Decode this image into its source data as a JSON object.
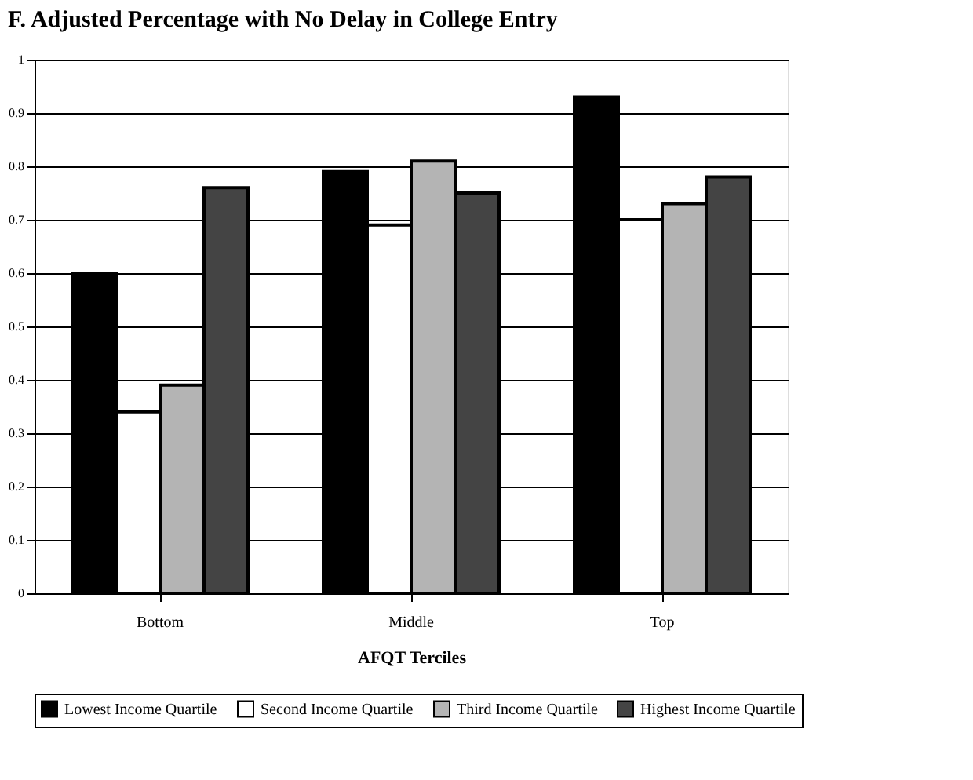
{
  "chart_data": {
    "type": "bar",
    "title": "F. Adjusted Percentage with No Delay in College Entry",
    "xlabel": "AFQT Terciles",
    "categories": [
      "Bottom",
      "Middle",
      "Top"
    ],
    "series": [
      {
        "name": "Lowest Income Quartile",
        "color": "#000000",
        "values": [
          0.6,
          0.79,
          0.93
        ]
      },
      {
        "name": "Second Income Quartile",
        "color": "#ffffff",
        "values": [
          0.34,
          0.69,
          0.7
        ]
      },
      {
        "name": "Third Income Quartile",
        "color": "#b4b4b4",
        "values": [
          0.39,
          0.81,
          0.73
        ]
      },
      {
        "name": "Highest Income Quartile",
        "color": "#444444",
        "values": [
          0.76,
          0.75,
          0.78
        ]
      }
    ],
    "ylim": [
      0,
      1
    ],
    "yticks": [
      0,
      0.1,
      0.2,
      0.3,
      0.4,
      0.5,
      0.6,
      0.7,
      0.8,
      0.9,
      1
    ],
    "grid": "y",
    "legend": "bottom"
  }
}
